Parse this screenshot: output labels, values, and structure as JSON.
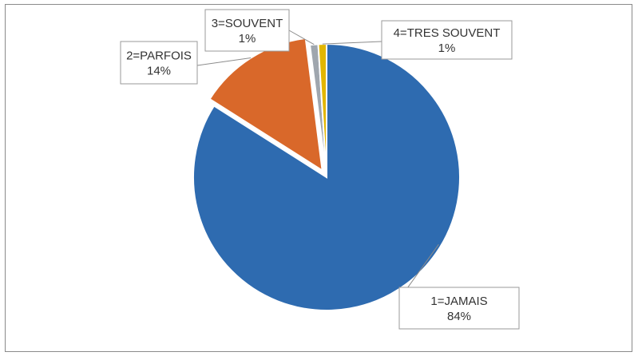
{
  "chart_data": {
    "type": "pie",
    "title": "",
    "slices": [
      {
        "category": "1=JAMAIS",
        "percent_label": "84%",
        "value": 84,
        "color": "#2E6BB0"
      },
      {
        "category": "2=PARFOIS",
        "percent_label": "14%",
        "value": 14,
        "color": "#D9682A"
      },
      {
        "category": "3=SOUVENT",
        "percent_label": "1%",
        "value": 1,
        "color": "#9FA6AE"
      },
      {
        "category": "4=TRES SOUVENT",
        "percent_label": "1%",
        "value": 1,
        "color": "#E2B600"
      }
    ],
    "legend": "none",
    "data_labels": "callouts with leader lines"
  }
}
